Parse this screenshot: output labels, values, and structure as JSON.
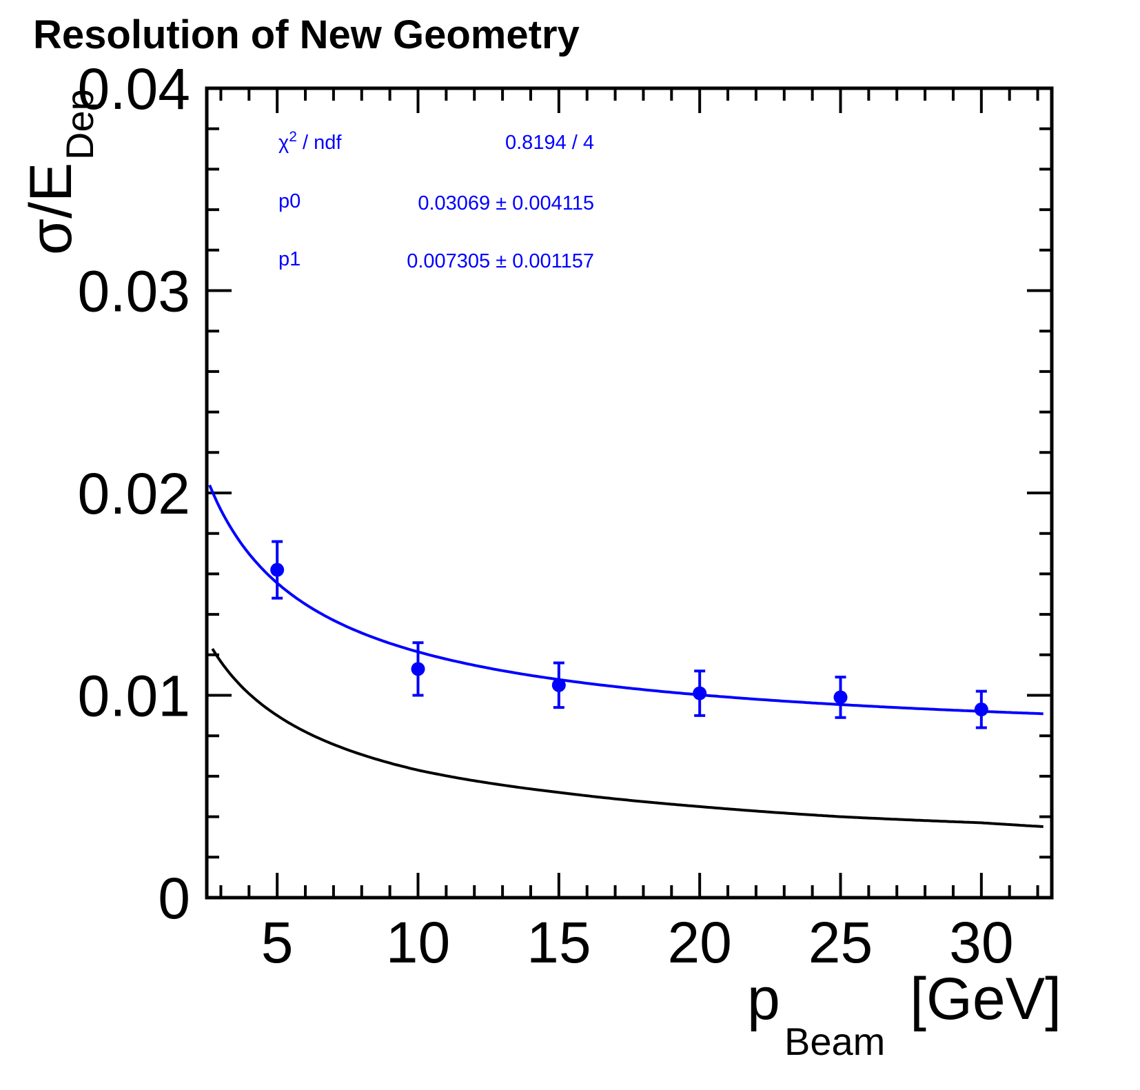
{
  "chart_data": {
    "type": "scatter",
    "title": "Resolution of New Geometry",
    "xlabel": {
      "main": "p",
      "sub": "Beam",
      "unit": "[GeV]"
    },
    "ylabel": {
      "main": "σ/E",
      "sub": "Dep"
    },
    "xlim": [
      2.5,
      32.5
    ],
    "ylim": [
      0,
      0.04
    ],
    "x_ticks": [
      5,
      10,
      15,
      20,
      25,
      30
    ],
    "x_tick_labels": [
      "5",
      "10",
      "15",
      "20",
      "25",
      "30"
    ],
    "y_ticks": [
      0,
      0.01,
      0.02,
      0.03,
      0.04
    ],
    "y_tick_labels": [
      "0",
      "0.01",
      "0.02",
      "0.03",
      "0.04"
    ],
    "grid": false,
    "series": [
      {
        "kind": "points",
        "color": "#0000ff",
        "points": [
          {
            "x": 5,
            "y": 0.0162,
            "err": 0.0014
          },
          {
            "x": 10,
            "y": 0.0113,
            "err": 0.0013
          },
          {
            "x": 15,
            "y": 0.0105,
            "err": 0.0011
          },
          {
            "x": 20,
            "y": 0.0101,
            "err": 0.0011
          },
          {
            "x": 25,
            "y": 0.0099,
            "err": 0.001
          },
          {
            "x": 30,
            "y": 0.0093,
            "err": 0.0009
          }
        ]
      },
      {
        "kind": "fit",
        "color": "#0000ff",
        "formula": "sqrt((p0/sqrt(x))^2 + p1^2)",
        "p0": 0.03069,
        "p1": 0.007305
      },
      {
        "kind": "curve",
        "color": "#000000",
        "points": [
          {
            "x": 2.7,
            "y": 0.0123
          },
          {
            "x": 5,
            "y": 0.009
          },
          {
            "x": 10,
            "y": 0.0063
          },
          {
            "x": 15,
            "y": 0.0052
          },
          {
            "x": 20,
            "y": 0.0045
          },
          {
            "x": 25,
            "y": 0.004
          },
          {
            "x": 30,
            "y": 0.0037
          },
          {
            "x": 32.3,
            "y": 0.0035
          }
        ]
      }
    ],
    "stats_box": {
      "color": "#0000ff",
      "rows": [
        {
          "label_main": "χ",
          "label_sup": "2",
          "label_rest": " / ndf",
          "value": "0.8194 / 4"
        },
        {
          "label_main": "p0",
          "label_sup": "",
          "label_rest": "",
          "value": "0.03069 ± 0.004115"
        },
        {
          "label_main": "p1",
          "label_sup": "",
          "label_rest": "",
          "value": "0.007305 ± 0.001157"
        }
      ]
    }
  }
}
